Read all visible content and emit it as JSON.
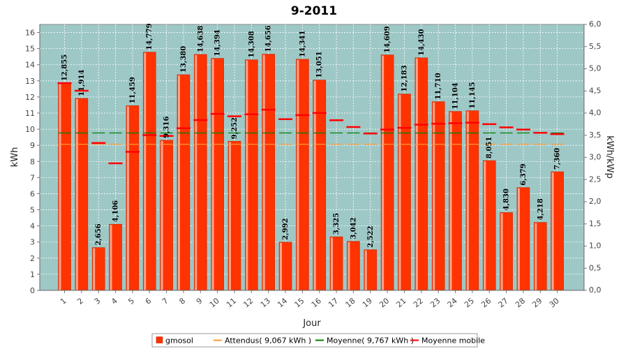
{
  "chart_data": {
    "type": "bar",
    "title": "9-2011",
    "xlabel": "Jour",
    "ylabel": "kWh",
    "y2label": "kWh/kWp",
    "ylim": [
      0,
      16.5
    ],
    "y2lim": [
      0,
      6.0
    ],
    "yticks": [
      "0",
      "1",
      "2",
      "3",
      "4",
      "5",
      "6",
      "7",
      "8",
      "9",
      "10",
      "11",
      "12",
      "13",
      "14",
      "15",
      "16"
    ],
    "y2ticks": [
      "0,0",
      "0,5",
      "1,0",
      "1,5",
      "2,0",
      "2,5",
      "3,0",
      "3,5",
      "4,0",
      "4,5",
      "5,0",
      "5,5",
      "6,0"
    ],
    "grid": true,
    "legend_position": "bottom",
    "categories": [
      "1",
      "2",
      "3",
      "4",
      "5",
      "6",
      "7",
      "8",
      "9",
      "10",
      "11",
      "12",
      "13",
      "14",
      "15",
      "16",
      "17",
      "18",
      "19",
      "20",
      "21",
      "22",
      "23",
      "24",
      "25",
      "26",
      "27",
      "28",
      "29",
      "30"
    ],
    "series": [
      {
        "name": "gmosol",
        "color": "#ff3300",
        "values": [
          12.855,
          11.914,
          2.656,
          4.106,
          11.459,
          14.779,
          9.316,
          13.38,
          14.638,
          14.394,
          9.252,
          14.308,
          14.656,
          2.992,
          14.341,
          13.051,
          3.325,
          3.042,
          2.522,
          14.609,
          12.183,
          14.43,
          11.71,
          11.104,
          11.145,
          8.051,
          4.83,
          6.379,
          4.218,
          7.36
        ],
        "labels": [
          "12,855",
          "11,914",
          "2,656",
          "4,106",
          "11,459",
          "14,779",
          "9,316",
          "13,380",
          "14,638",
          "14,394",
          "9,252",
          "14,308",
          "14,656",
          "2,992",
          "14,341",
          "13,051",
          "3,325",
          "3,042",
          "2,522",
          "14,609",
          "12,183",
          "14,430",
          "11,710",
          "11,104",
          "11,145",
          "8,051",
          "4,830",
          "6,379",
          "4,218",
          "7,360"
        ]
      },
      {
        "name": "Attendus( 9,067 kWh )",
        "color": "#ff9933",
        "value": 9.067
      },
      {
        "name": "Moyenne( 9,767 kWh )",
        "color": "#008000",
        "value": 9.767
      },
      {
        "name": "Moyenne mobile",
        "color": "#ff0000",
        "values": [
          12.855,
          12.385,
          9.142,
          7.883,
          8.598,
          9.628,
          9.584,
          10.059,
          10.568,
          10.951,
          10.797,
          10.923,
          11.21,
          10.623,
          10.87,
          11.006,
          10.554,
          10.136,
          9.735,
          9.979,
          10.083,
          10.28,
          10.341,
          10.373,
          10.403,
          10.314,
          10.111,
          9.978,
          9.779,
          9.697
        ]
      }
    ]
  }
}
